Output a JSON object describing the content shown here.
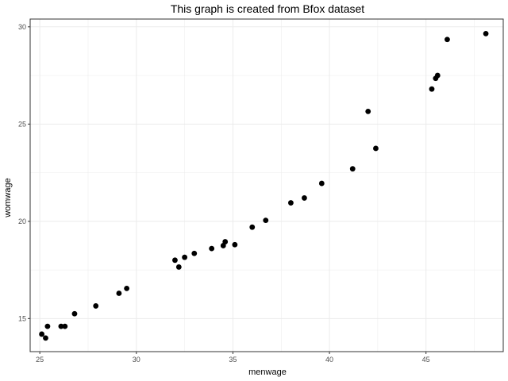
{
  "chart_data": {
    "type": "scatter",
    "title": "This graph is created from Bfox dataset",
    "xlabel": "menwage",
    "ylabel": "womwage",
    "xlim": [
      24.5,
      49
    ],
    "ylim": [
      13.3,
      30.4
    ],
    "x_ticks": [
      25,
      30,
      35,
      40,
      45
    ],
    "y_ticks": [
      15,
      20,
      25,
      30
    ],
    "grid": true,
    "theme": "bw",
    "point_color": "#000000",
    "grid_color": "#ebebeb",
    "panel_border_color": "#333333",
    "points": [
      {
        "x": 25.1,
        "y": 14.2
      },
      {
        "x": 25.3,
        "y": 14.0
      },
      {
        "x": 25.4,
        "y": 14.6
      },
      {
        "x": 26.1,
        "y": 14.6
      },
      {
        "x": 26.3,
        "y": 14.6
      },
      {
        "x": 26.8,
        "y": 15.25
      },
      {
        "x": 27.9,
        "y": 15.65
      },
      {
        "x": 29.1,
        "y": 16.3
      },
      {
        "x": 29.5,
        "y": 16.55
      },
      {
        "x": 32.0,
        "y": 18.0
      },
      {
        "x": 32.2,
        "y": 17.65
      },
      {
        "x": 32.5,
        "y": 18.15
      },
      {
        "x": 33.0,
        "y": 18.35
      },
      {
        "x": 33.9,
        "y": 18.6
      },
      {
        "x": 34.5,
        "y": 18.75
      },
      {
        "x": 34.6,
        "y": 18.95
      },
      {
        "x": 35.1,
        "y": 18.8
      },
      {
        "x": 36.0,
        "y": 19.7
      },
      {
        "x": 36.7,
        "y": 20.05
      },
      {
        "x": 38.0,
        "y": 20.95
      },
      {
        "x": 38.7,
        "y": 21.2
      },
      {
        "x": 39.6,
        "y": 21.95
      },
      {
        "x": 41.2,
        "y": 22.7
      },
      {
        "x": 42.0,
        "y": 25.65
      },
      {
        "x": 42.4,
        "y": 23.75
      },
      {
        "x": 45.3,
        "y": 26.8
      },
      {
        "x": 45.5,
        "y": 27.35
      },
      {
        "x": 45.6,
        "y": 27.5
      },
      {
        "x": 46.1,
        "y": 29.35
      },
      {
        "x": 48.1,
        "y": 29.65
      }
    ]
  }
}
